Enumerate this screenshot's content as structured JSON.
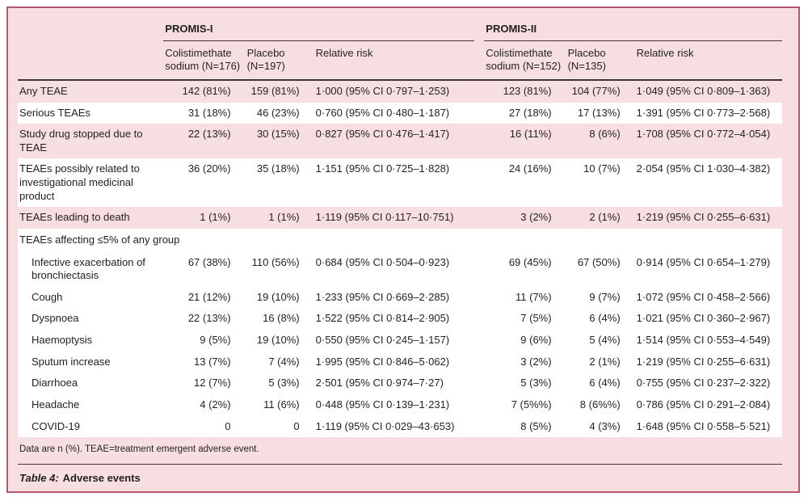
{
  "table": {
    "groups": [
      {
        "label": "PROMIS-I"
      },
      {
        "label": "PROMIS-II"
      }
    ],
    "columns": [
      "Colistimethate sodium (N=176)",
      "Placebo (N=197)",
      "Relative risk",
      "Colistimethate sodium (N=152)",
      "Placebo (N=135)",
      "Relative risk"
    ],
    "rows": [
      {
        "type": "data",
        "white": false,
        "indent": false,
        "label": "Any TEAE",
        "cells": [
          "142 (81%)",
          "159 (81%)",
          "1·000 (95% CI 0·797–1·253)",
          "123 (81%)",
          "104 (77%)",
          "1·049 (95% CI 0·809–1·363)"
        ]
      },
      {
        "type": "data",
        "white": true,
        "indent": false,
        "label": "Serious TEAEs",
        "cells": [
          "31 (18%)",
          "46 (23%)",
          "0·760 (95% CI 0·480–1·187)",
          "27 (18%)",
          "17 (13%)",
          "1·391 (95% CI 0·773–2·568)"
        ]
      },
      {
        "type": "data",
        "white": false,
        "indent": false,
        "label": "Study drug stopped due to TEAE",
        "cells": [
          "22 (13%)",
          "30 (15%)",
          "0·827 (95% CI 0·476–1·417)",
          "16 (11%)",
          "8 (6%)",
          "1·708 (95% CI 0·772–4·054)"
        ]
      },
      {
        "type": "data",
        "white": true,
        "indent": false,
        "label": "TEAEs possibly related to investigational medicinal product",
        "cells": [
          "36 (20%)",
          "35 (18%)",
          "1·151 (95% CI 0·725–1·828)",
          "24 (16%)",
          "10 (7%)",
          "2·054 (95% CI 1·030–4·382)"
        ]
      },
      {
        "type": "data",
        "white": false,
        "indent": false,
        "label": "TEAEs leading to death",
        "cells": [
          "1 (1%)",
          "1 (1%)",
          "1·119 (95% CI 0·117–10·751)",
          "3 (2%)",
          "2 (1%)",
          "1·219 (95% CI 0·255–6·631)"
        ]
      },
      {
        "type": "section",
        "white": true,
        "label": "TEAEs affecting ≤5% of any group"
      },
      {
        "type": "data",
        "white": true,
        "indent": true,
        "label": "Infective exacerbation of bronchiectasis",
        "cells": [
          "67 (38%)",
          "110 (56%)",
          "0·684 (95% CI 0·504–0·923)",
          "69 (45%)",
          "67 (50%)",
          "0·914 (95% CI 0·654–1·279)"
        ]
      },
      {
        "type": "data",
        "white": true,
        "indent": true,
        "label": "Cough",
        "cells": [
          "21 (12%)",
          "19 (10%)",
          "1·233 (95% CI 0·669–2·285)",
          "11 (7%)",
          "9 (7%)",
          "1·072 (95% CI 0·458–2·566)"
        ]
      },
      {
        "type": "data",
        "white": true,
        "indent": true,
        "label": "Dyspnoea",
        "cells": [
          "22 (13%)",
          "16 (8%)",
          "1·522 (95% CI 0·814–2·905)",
          "7 (5%)",
          "6 (4%)",
          "1·021 (95% CI 0·360–2·967)"
        ]
      },
      {
        "type": "data",
        "white": true,
        "indent": true,
        "label": "Haemoptysis",
        "cells": [
          "9 (5%)",
          "19 (10%)",
          "0·550 (95% CI 0·245–1·157)",
          "9 (6%)",
          "5 (4%)",
          "1·514 (95% CI 0·553–4·549)"
        ]
      },
      {
        "type": "data",
        "white": true,
        "indent": true,
        "label": "Sputum increase",
        "cells": [
          "13 (7%)",
          "7 (4%)",
          "1·995 (95% CI 0·846–5·062)",
          "3 (2%)",
          "2 (1%)",
          "1·219 (95% CI 0·255–6·631)"
        ]
      },
      {
        "type": "data",
        "white": true,
        "indent": true,
        "label": "Diarrhoea",
        "cells": [
          "12 (7%)",
          "5 (3%)",
          "2·501 (95% CI 0·974–7·27)",
          "5 (3%)",
          "6 (4%)",
          "0·755 (95% CI 0·237–2·322)"
        ]
      },
      {
        "type": "data",
        "white": true,
        "indent": true,
        "label": "Headache",
        "cells": [
          "4 (2%)",
          "11 (6%)",
          "0·448 (95% CI 0·139–1·231)",
          "7 (5%%)",
          "8 (6%%)",
          "0·786 (95% CI 0·291–2·084)"
        ]
      },
      {
        "type": "data",
        "white": true,
        "indent": true,
        "label": "COVID-19",
        "cells": [
          "0",
          "0",
          "1·119 (95% CI 0·029–43·653)",
          "8 (5%)",
          "4 (3%)",
          "1·648 (95% CI 0·558–5·521)"
        ]
      }
    ],
    "footnote": "Data are n (%). TEAE=treatment emergent adverse event.",
    "caption_prefix": "Table 4:",
    "caption_title": "Adverse events"
  },
  "colors": {
    "frame_border": "#b5576e",
    "background_pink": "#f7dfe1",
    "row_white": "#ffffff",
    "rule_dark": "#3f3537",
    "text": "#231f20"
  }
}
